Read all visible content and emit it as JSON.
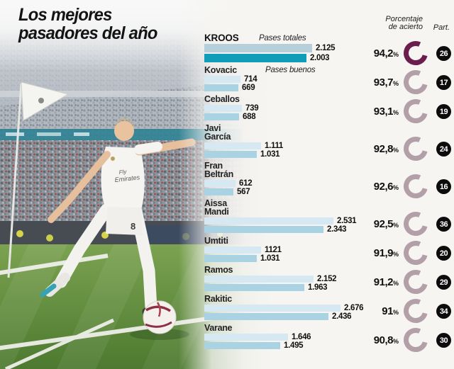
{
  "title": {
    "line1": "Los mejores",
    "line2": "pasadores del año"
  },
  "headers": {
    "accuracy_line1": "Porcentaje",
    "accuracy_line2": "de acierto",
    "appearances": "Part."
  },
  "labels": {
    "total_passes": "Pases totales",
    "good_passes": "Pases buenos",
    "percent_symbol": "%"
  },
  "colors": {
    "bar_total_light": "#d6e9f2",
    "bar_good_light": "#a9d2e3",
    "bar_total_highlight": "#b7cfda",
    "bar_good_highlight": "#0f9db8",
    "donut_highlight": "#6b1e4e",
    "donut_normal": "#b39fa8",
    "badge": "#0c0c0c"
  },
  "rows": [
    {
      "name_lines": [
        "KROOS"
      ],
      "note": "Pases totales",
      "total": 2125,
      "total_label": "2.125",
      "good": 2003,
      "good_label": "2.003",
      "pct": "94,2",
      "apps": "26",
      "highlight": true
    },
    {
      "name_lines": [
        "Kovacic"
      ],
      "note": "Pases buenos",
      "total": 714,
      "total_label": "714",
      "good": 669,
      "good_label": "669",
      "pct": "93,7",
      "apps": "17",
      "highlight": false
    },
    {
      "name_lines": [
        "Ceballos"
      ],
      "total": 739,
      "total_label": "739",
      "good": 688,
      "good_label": "688",
      "pct": "93,1",
      "apps": "19",
      "highlight": false
    },
    {
      "name_lines": [
        "Javi",
        "García"
      ],
      "total": 1111,
      "total_label": "1.111",
      "good": 1031,
      "good_label": "1.031",
      "pct": "92,8",
      "apps": "24",
      "highlight": false
    },
    {
      "name_lines": [
        "Fran",
        "Beltrán"
      ],
      "total": 612,
      "total_label": "612",
      "good": 567,
      "good_label": "567",
      "pct": "92,6",
      "apps": "16",
      "highlight": false
    },
    {
      "name_lines": [
        "Aissa",
        "Mandi"
      ],
      "total": 2531,
      "total_label": "2.531",
      "good": 2343,
      "good_label": "2.343",
      "pct": "92,5",
      "apps": "36",
      "highlight": false
    },
    {
      "name_lines": [
        "Umtiti"
      ],
      "total": 1121,
      "total_label": "1121",
      "good": 1031,
      "good_label": "1.031",
      "pct": "91,9",
      "apps": "20",
      "highlight": false
    },
    {
      "name_lines": [
        "Ramos"
      ],
      "total": 2152,
      "total_label": "2.152",
      "good": 1963,
      "good_label": "1.963",
      "pct": "91,2",
      "apps": "29",
      "highlight": false
    },
    {
      "name_lines": [
        "Rakitic"
      ],
      "total": 2676,
      "total_label": "2.676",
      "good": 2436,
      "good_label": "2.436",
      "pct": "91",
      "apps": "34",
      "highlight": false
    },
    {
      "name_lines": [
        "Varane"
      ],
      "total": 1646,
      "total_label": "1.646",
      "good": 1495,
      "good_label": "1.495",
      "pct": "90,8",
      "apps": "30",
      "highlight": false
    }
  ],
  "photo": {
    "jersey_sponsor_line1": "Fly",
    "jersey_sponsor_line2": "Emirates",
    "shorts_number": "8"
  },
  "chart_data": {
    "type": "bar",
    "orientation": "horizontal",
    "title": "Los mejores pasadores del año",
    "categories": [
      "Kroos",
      "Kovacic",
      "Ceballos",
      "Javi García",
      "Fran Beltrán",
      "Aissa Mandi",
      "Umtiti",
      "Ramos",
      "Rakitic",
      "Varane"
    ],
    "series": [
      {
        "name": "Pases totales",
        "values": [
          2125,
          714,
          739,
          1111,
          612,
          2531,
          1121,
          2152,
          2676,
          1646
        ]
      },
      {
        "name": "Pases buenos",
        "values": [
          2003,
          669,
          688,
          1031,
          567,
          2343,
          1031,
          1963,
          2436,
          1495
        ]
      },
      {
        "name": "Porcentaje de acierto",
        "values": [
          94.2,
          93.7,
          93.1,
          92.8,
          92.6,
          92.5,
          91.9,
          91.2,
          91.0,
          90.8
        ]
      },
      {
        "name": "Part.",
        "values": [
          26,
          17,
          19,
          24,
          16,
          36,
          20,
          29,
          34,
          30
        ]
      }
    ],
    "xlim": [
      0,
      2676
    ],
    "legend_position": "inline-top",
    "grid": false
  }
}
